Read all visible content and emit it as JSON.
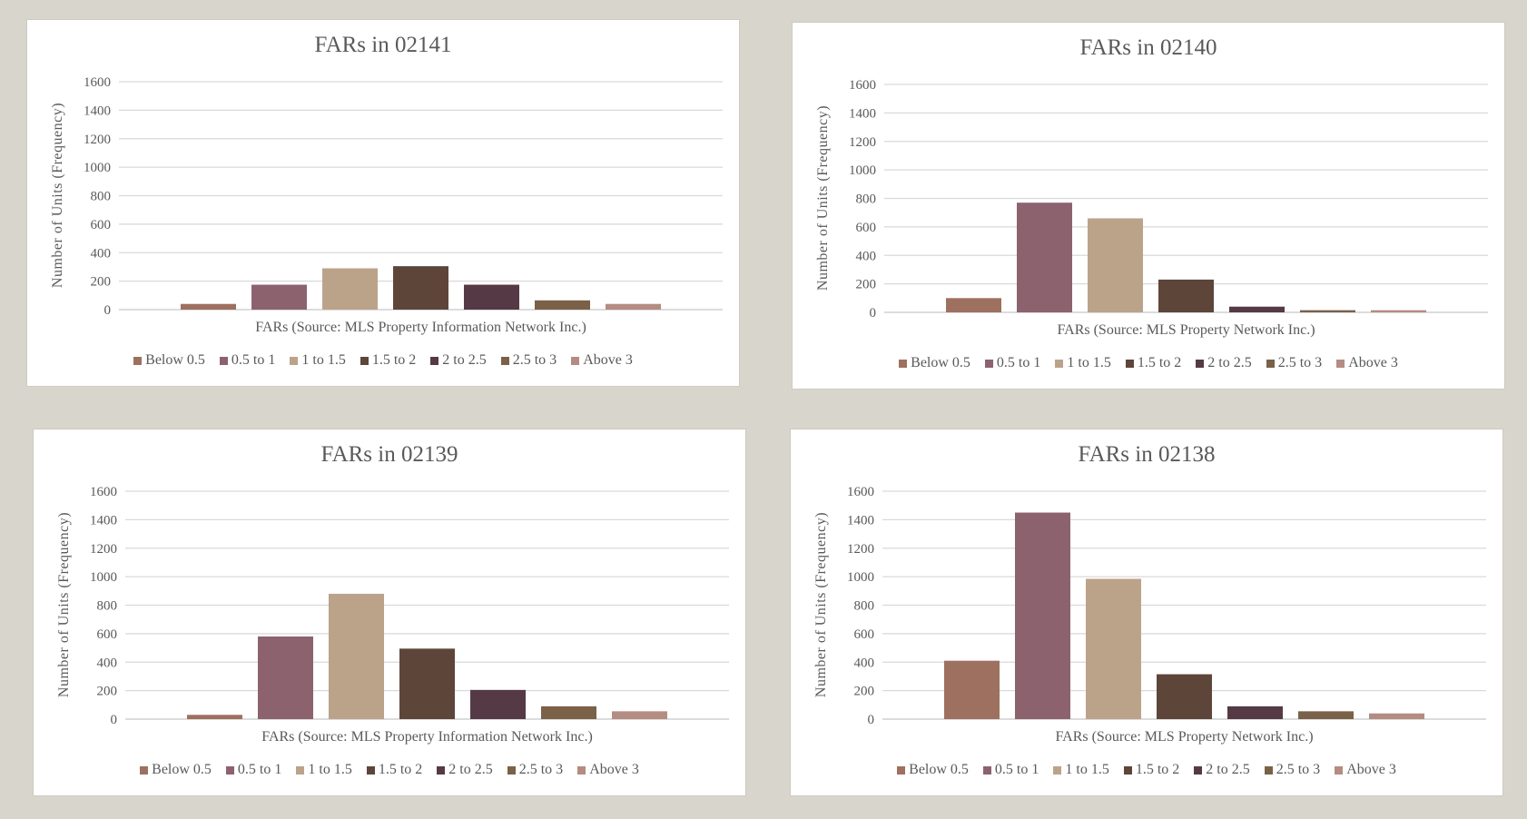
{
  "chart_data": [
    {
      "type": "bar",
      "title": "FARs in 02141",
      "xlabel": "FARs (Source: MLS Property Information Network Inc.)",
      "ylabel": "Number of Units (Frequency)",
      "ylim": [
        0,
        1600
      ],
      "yticks": [
        "0",
        "200",
        "400",
        "600",
        "800",
        "1000",
        "1200",
        "1400",
        "1600"
      ],
      "grid": true,
      "legend": "bottom",
      "categories": [
        "Below 0.5",
        "0.5 to 1",
        "1 to 1.5",
        "1.5 to 2",
        "2 to 2.5",
        "2.5 to 3",
        "Above 3"
      ],
      "values": [
        40,
        175,
        290,
        305,
        175,
        65,
        40
      ]
    },
    {
      "type": "bar",
      "title": "FARs in 02140",
      "xlabel": "FARs (Source: MLS Property Network Inc.)",
      "ylabel": "Number of Units (Frequency)",
      "ylim": [
        0,
        1600
      ],
      "yticks": [
        "0",
        "200",
        "400",
        "600",
        "800",
        "1000",
        "1200",
        "1400",
        "1600"
      ],
      "grid": true,
      "legend": "bottom",
      "categories": [
        "Below 0.5",
        "0.5 to 1",
        "1 to 1.5",
        "1.5 to 2",
        "2 to 2.5",
        "2.5 to 3",
        "Above 3"
      ],
      "values": [
        100,
        770,
        660,
        230,
        40,
        15,
        15
      ]
    },
    {
      "type": "bar",
      "title": "FARs in 02139",
      "xlabel": "FARs (Source: MLS Property Information Network Inc.)",
      "ylabel": "Number of Units (Frequency)",
      "ylim": [
        0,
        1600
      ],
      "yticks": [
        "0",
        "200",
        "400",
        "600",
        "800",
        "1000",
        "1200",
        "1400",
        "1600"
      ],
      "grid": true,
      "legend": "bottom",
      "categories": [
        "Below 0.5",
        "0.5 to 1",
        "1 to 1.5",
        "1.5 to 2",
        "2 to 2.5",
        "2.5 to 3",
        "Above 3"
      ],
      "values": [
        30,
        580,
        880,
        495,
        205,
        90,
        55
      ]
    },
    {
      "type": "bar",
      "title": "FARs in 02138",
      "xlabel": "FARs (Source: MLS Property Network Inc.)",
      "ylabel": "Number of Units (Frequency)",
      "ylim": [
        0,
        1600
      ],
      "yticks": [
        "0",
        "200",
        "400",
        "600",
        "800",
        "1000",
        "1200",
        "1400",
        "1600"
      ],
      "grid": true,
      "legend": "bottom",
      "categories": [
        "Below 0.5",
        "0.5 to 1",
        "1 to 1.5",
        "1.5 to 2",
        "2 to 2.5",
        "2.5 to 3",
        "Above 3"
      ],
      "values": [
        410,
        1450,
        985,
        315,
        90,
        55,
        40
      ]
    }
  ],
  "colors": [
    "#9e7060",
    "#8d626f",
    "#bba38a",
    "#5e453a",
    "#553a46",
    "#7a6148",
    "#b48c82"
  ]
}
